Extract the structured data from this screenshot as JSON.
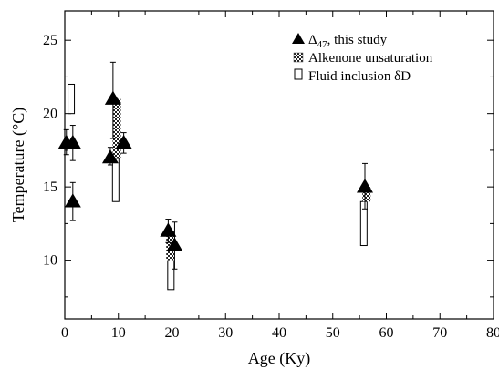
{
  "chart_data": {
    "type": "scatter",
    "title": "",
    "xlabel": "Age (Ky)",
    "ylabel": "Temperature (°C)",
    "xlim": [
      0,
      80
    ],
    "ylim": [
      6,
      27
    ],
    "x_ticks": [
      0,
      10,
      20,
      30,
      40,
      50,
      60,
      70,
      80
    ],
    "y_ticks": [
      10,
      15,
      20,
      25
    ],
    "grid": false,
    "legend_position": "top-right",
    "legend": {
      "delta_prefix": "Δ",
      "delta_subscript": "47",
      "delta_suffix": ", this study",
      "alkenone": "Alkenone unsaturation",
      "fluid_inclusion": "Fluid inclusion δD"
    },
    "series": [
      {
        "name": "Δ47, this study",
        "marker": "filled-triangle",
        "points": [
          {
            "x": 0.3,
            "y": 18.0,
            "err_low": 17.2,
            "err_high": 18.9
          },
          {
            "x": 1.5,
            "y": 18.0,
            "err_low": 16.8,
            "err_high": 19.2
          },
          {
            "x": 1.5,
            "y": 14.0,
            "err_low": 12.7,
            "err_high": 15.3
          },
          {
            "x": 8.5,
            "y": 17.0,
            "err_low": 16.5,
            "err_high": 17.7
          },
          {
            "x": 9.0,
            "y": 21.0,
            "err_low": 18.3,
            "err_high": 23.5
          },
          {
            "x": 11.0,
            "y": 18.0,
            "err_low": 17.3,
            "err_high": 18.7
          },
          {
            "x": 19.3,
            "y": 12.0,
            "err_low": 11.2,
            "err_high": 12.8
          },
          {
            "x": 20.5,
            "y": 11.0,
            "err_low": 9.4,
            "err_high": 12.6
          },
          {
            "x": 56.0,
            "y": 15.0,
            "err_low": 13.5,
            "err_high": 16.6
          }
        ]
      },
      {
        "name": "Alkenone unsaturation",
        "marker": "checkered-bar",
        "ranges": [
          {
            "x": 9.7,
            "y_low": 17.0,
            "y_high": 21.0
          },
          {
            "x": 19.7,
            "y_low": 10.0,
            "y_high": 12.0
          },
          {
            "x": 56.3,
            "y_low": 14.0,
            "y_high": 15.0
          }
        ]
      },
      {
        "name": "Fluid inclusion δD",
        "marker": "open-bar",
        "ranges": [
          {
            "x": 1.2,
            "y_low": 20.0,
            "y_high": 22.0
          },
          {
            "x": 9.5,
            "y_low": 14.0,
            "y_high": 17.0
          },
          {
            "x": 19.8,
            "y_low": 8.0,
            "y_high": 10.5
          },
          {
            "x": 55.8,
            "y_low": 11.0,
            "y_high": 14.0
          }
        ]
      }
    ]
  }
}
